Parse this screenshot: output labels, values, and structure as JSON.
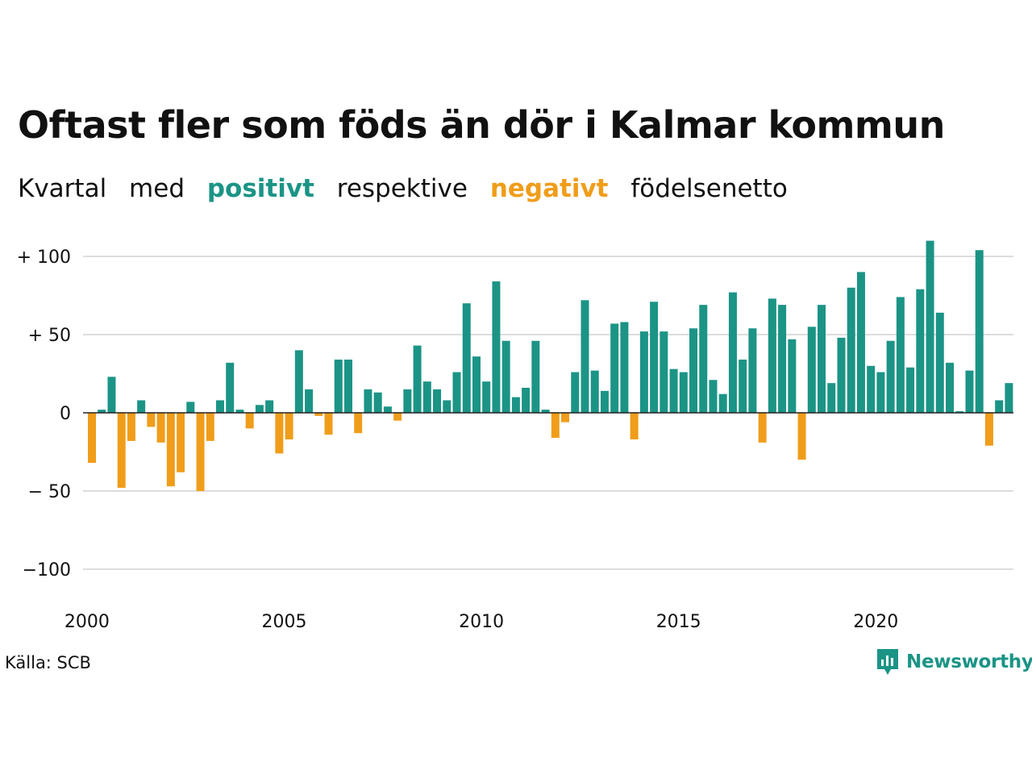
{
  "title": "Oftast fler som föds än dör i Kalmar kommun",
  "subtitle": {
    "part1": "Kvartal",
    "part2": "med",
    "positive_word": "positivt",
    "part3": "respektive",
    "negative_word": "negativt",
    "part4": "födelsenetto"
  },
  "source": "Källa: SCB",
  "brand": "Newsworthy",
  "colors": {
    "positive": "#1b9486",
    "negative": "#f09d1a",
    "grid": "#dddddd",
    "axis": "#222222"
  },
  "chart_data": {
    "type": "bar",
    "x_start": 2000,
    "period": "quarter",
    "ylim": [
      -100,
      110
    ],
    "yticks": [
      {
        "value": 100,
        "label": "+ 100"
      },
      {
        "value": 50,
        "label": "+  50"
      },
      {
        "value": 0,
        "label": "0"
      },
      {
        "value": -50,
        "label": "− 50"
      },
      {
        "value": -100,
        "label": "−100"
      }
    ],
    "xticks": [
      {
        "year": 2000,
        "label": "2000"
      },
      {
        "year": 2005,
        "label": "2005"
      },
      {
        "year": 2010,
        "label": "2010"
      },
      {
        "year": 2015,
        "label": "2015"
      },
      {
        "year": 2020,
        "label": "2020"
      }
    ],
    "grid": true,
    "values": [
      -32,
      2,
      23,
      -48,
      -18,
      8,
      -9,
      -19,
      -47,
      -38,
      7,
      -50,
      -18,
      8,
      32,
      2,
      -10,
      5,
      8,
      -26,
      -17,
      40,
      15,
      -2,
      -14,
      34,
      34,
      -13,
      15,
      13,
      4,
      -5,
      15,
      43,
      20,
      15,
      8,
      26,
      70,
      36,
      20,
      84,
      46,
      10,
      16,
      46,
      2,
      -16,
      -6,
      26,
      72,
      27,
      14,
      57,
      58,
      -17,
      52,
      71,
      52,
      28,
      26,
      54,
      69,
      21,
      12,
      77,
      34,
      54,
      -19,
      73,
      69,
      47,
      -30,
      55,
      69,
      19,
      48,
      80,
      90,
      30,
      26,
      46,
      74,
      29,
      79,
      110,
      64,
      32,
      1,
      27,
      104,
      -21,
      8,
      19
    ]
  }
}
